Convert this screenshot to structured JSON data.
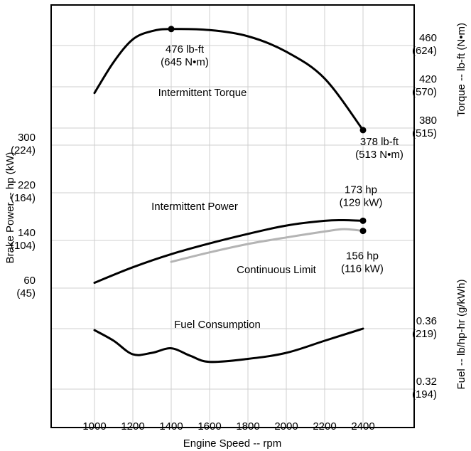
{
  "chart_data": {
    "type": "line",
    "xlabel": "Engine Speed -- rpm",
    "x_ticks": [
      "1000",
      "1200",
      "1400",
      "1600",
      "1800",
      "2000",
      "2200",
      "2400"
    ],
    "xlim": [
      900,
      2600
    ],
    "grid": true,
    "axes": {
      "torque": {
        "label": "Torque -- lb-ft (N•m)",
        "side": "right",
        "unit": "lb-ft",
        "ticks": [
          {
            "value": 460,
            "line1": "460",
            "line2": "(624)"
          },
          {
            "value": 420,
            "line1": "420",
            "line2": "(570)"
          },
          {
            "value": 380,
            "line1": "380",
            "line2": "(515)"
          }
        ]
      },
      "power": {
        "label": "Brake Power -- hp (kW)",
        "side": "left",
        "unit": "hp",
        "ticks": [
          {
            "value": 300,
            "line1": "300",
            "line2": "(224)"
          },
          {
            "value": 220,
            "line1": "220",
            "line2": "(164)"
          },
          {
            "value": 140,
            "line1": "140",
            "line2": "(104)"
          },
          {
            "value": 60,
            "line1": "60",
            "line2": "(45)"
          }
        ]
      },
      "fuel": {
        "label": "Fuel -- lb/hp-hr (g/kWh)",
        "side": "right",
        "unit": "lb/hp-hr",
        "ticks": [
          {
            "value": 0.36,
            "line1": "0.36",
            "line2": "(219)"
          },
          {
            "value": 0.32,
            "line1": "0.32",
            "line2": "(194)"
          }
        ]
      }
    },
    "series": [
      {
        "name": "Intermittent Torque",
        "axis": "torque",
        "color": "#000000",
        "x": [
          1000,
          1100,
          1200,
          1300,
          1400,
          1600,
          1800,
          2000,
          2200,
          2400
        ],
        "y": [
          414,
          444,
          466,
          474,
          476,
          475,
          469,
          454,
          428,
          378
        ]
      },
      {
        "name": "Intermittent Power",
        "axis": "power",
        "color": "#000000",
        "x": [
          1000,
          1200,
          1400,
          1600,
          1800,
          2000,
          2200,
          2300,
          2400
        ],
        "y": [
          69,
          95,
          117,
          135,
          151,
          165,
          173,
          174,
          173
        ]
      },
      {
        "name": "Continuous Limit",
        "axis": "power",
        "color": "#b4b4b4",
        "x": [
          1400,
          1600,
          1800,
          2000,
          2200,
          2300,
          2400
        ],
        "y": [
          104,
          120,
          134,
          145,
          155,
          159,
          156
        ]
      },
      {
        "name": "Fuel Consumption",
        "axis": "fuel",
        "color": "#000000",
        "x": [
          1000,
          1100,
          1200,
          1300,
          1400,
          1500,
          1600,
          1800,
          2000,
          2200,
          2400
        ],
        "y": [
          0.359,
          0.352,
          0.343,
          0.344,
          0.347,
          0.342,
          0.338,
          0.34,
          0.344,
          0.352,
          0.36
        ]
      }
    ],
    "points": [
      {
        "series": "Intermittent Torque",
        "x": 1400,
        "y": 476,
        "line1": "476 lb-ft",
        "line2": "(645 N•m)"
      },
      {
        "series": "Intermittent Torque",
        "x": 2400,
        "y": 378,
        "line1": "378 lb-ft",
        "line2": "(513 N•m)"
      },
      {
        "series": "Intermittent Power",
        "x": 2400,
        "y": 173,
        "line1": "173 hp",
        "line2": "(129 kW)"
      },
      {
        "series": "Continuous Limit",
        "x": 2400,
        "y": 156,
        "line1": "156 hp",
        "line2": "(116 kW)"
      }
    ]
  }
}
